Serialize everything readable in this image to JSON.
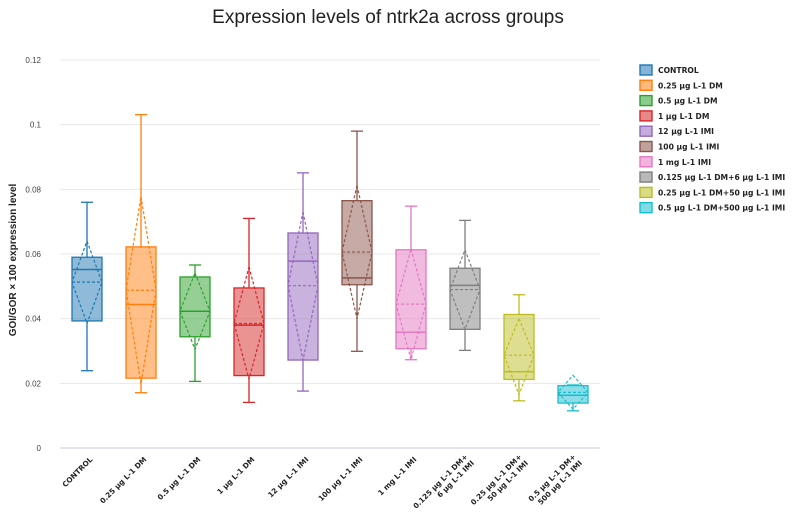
{
  "chart_data": {
    "type": "box",
    "title": "Expression levels of ntrk2a across groups",
    "ylabel": "GOI/GOR × 100 expression level",
    "xlabel": "",
    "ylim": [
      0,
      0.12
    ],
    "yticks": [
      "0",
      "0.02",
      "0.04",
      "0.06",
      "0.08",
      "0.1",
      "0.12"
    ],
    "grid": true,
    "legend_position": "right",
    "groups": [
      {
        "name": "CONTROL",
        "tick": [
          "CONTROL"
        ],
        "color": "#1f77b4",
        "min": 0.0239,
        "q1": 0.0393,
        "median": 0.0552,
        "q3": 0.059,
        "max": 0.076,
        "mean": 0.0513,
        "sd_low": 0.0385,
        "sd_high": 0.064
      },
      {
        "name": "0.25 µg L-1 DM",
        "tick": [
          "0.25 µg L-1 DM"
        ],
        "color": "#ff7f0e",
        "min": 0.0171,
        "q1": 0.0216,
        "median": 0.0444,
        "q3": 0.0622,
        "max": 0.1031,
        "mean": 0.0488,
        "sd_low": 0.0198,
        "sd_high": 0.0778
      },
      {
        "name": "0.5 µg L-1 DM",
        "tick": [
          "0.5 µg L-1 DM"
        ],
        "color": "#2ca02c",
        "min": 0.0206,
        "q1": 0.0344,
        "median": 0.0423,
        "q3": 0.0529,
        "max": 0.0566,
        "mean": 0.0423,
        "sd_low": 0.0305,
        "sd_high": 0.0541
      },
      {
        "name": "1 µg L-1 DM",
        "tick": [
          "1 µg L-1 DM"
        ],
        "color": "#d62728",
        "min": 0.0141,
        "q1": 0.0224,
        "median": 0.038,
        "q3": 0.0495,
        "max": 0.071,
        "mean": 0.0385,
        "sd_low": 0.0213,
        "sd_high": 0.056
      },
      {
        "name": "12 µg L-1 IMI",
        "tick": [
          "12 µg L-1 IMI"
        ],
        "color": "#9467bd",
        "min": 0.0176,
        "q1": 0.0272,
        "median": 0.0578,
        "q3": 0.0665,
        "max": 0.0851,
        "mean": 0.0502,
        "sd_low": 0.0272,
        "sd_high": 0.073
      },
      {
        "name": "100 µg L-1 IMI",
        "tick": [
          "100 µg L-1 IMI"
        ],
        "color": "#8c564b",
        "min": 0.0299,
        "q1": 0.0505,
        "median": 0.0526,
        "q3": 0.0765,
        "max": 0.098,
        "mean": 0.0606,
        "sd_low": 0.04,
        "sd_high": 0.0812
      },
      {
        "name": "1 mg L-1 IMI",
        "tick": [
          "1 mg L-1 IMI"
        ],
        "color": "#e377c2",
        "min": 0.0273,
        "q1": 0.0307,
        "median": 0.0358,
        "q3": 0.0613,
        "max": 0.0748,
        "mean": 0.0445,
        "sd_low": 0.0273,
        "sd_high": 0.0615
      },
      {
        "name": "0.125 µg L-1 DM+6 µg L-1 IMI",
        "tick": [
          "0.125 µg L-1 DM+",
          "6 µg L-1 IMI"
        ],
        "color": "#7f7f7f",
        "min": 0.0302,
        "q1": 0.0367,
        "median": 0.0503,
        "q3": 0.0556,
        "max": 0.0704,
        "mean": 0.049,
        "sd_low": 0.0367,
        "sd_high": 0.0613
      },
      {
        "name": "0.25 µg L-1 DM+50 µg L-1 IMI",
        "tick": [
          "0.25 µg L-1 DM+",
          "50 µg L-1 IMI"
        ],
        "color": "#bcbd22",
        "min": 0.0146,
        "q1": 0.0212,
        "median": 0.0236,
        "q3": 0.0413,
        "max": 0.0474,
        "mean": 0.0287,
        "sd_low": 0.0165,
        "sd_high": 0.04
      },
      {
        "name": "0.5 µg L-1 DM+500 µg L-1 IMI",
        "tick": [
          "0.5 µg L-1 DM+",
          "500 µg L-1 IMI"
        ],
        "color": "#17becf",
        "min": 0.0115,
        "q1": 0.0139,
        "median": 0.0163,
        "q3": 0.0193,
        "max": 0.0195,
        "mean": 0.0172,
        "sd_low": 0.012,
        "sd_high": 0.0225
      }
    ]
  }
}
